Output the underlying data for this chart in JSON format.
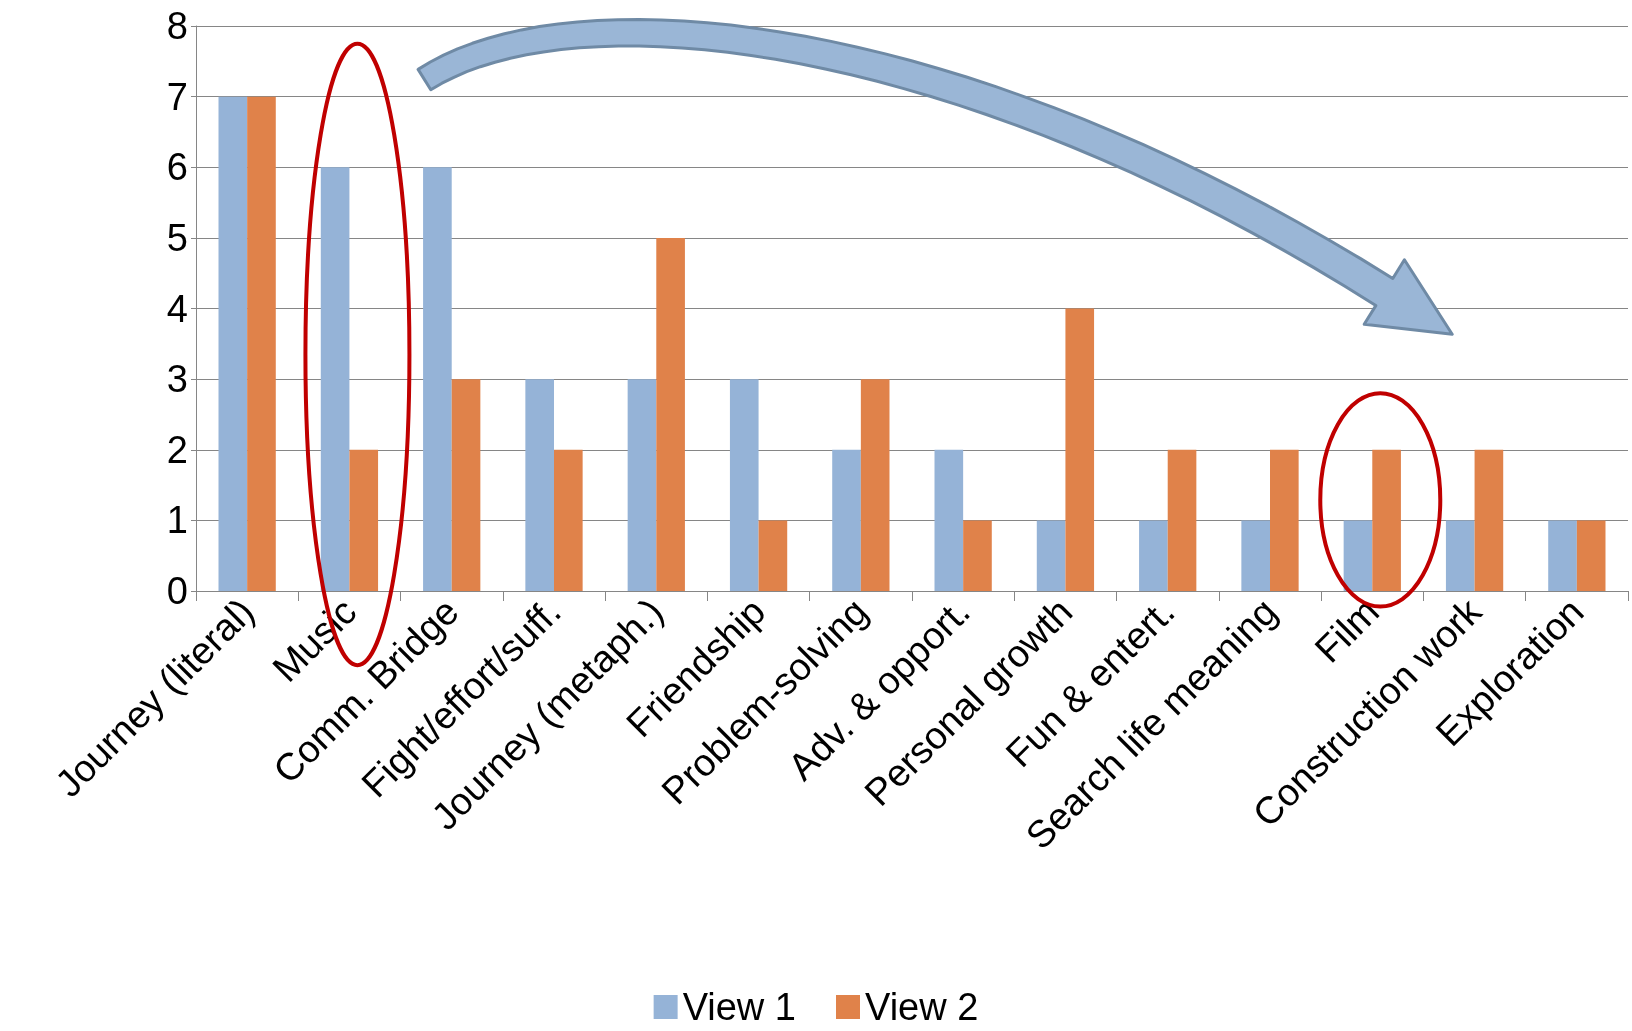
{
  "chart_data": {
    "type": "bar",
    "categories": [
      "Journey (literal)",
      "Music",
      "Comm. Bridge",
      "Fight/effort/suff.",
      "Journey (metaph.)",
      "Friendship",
      "Problem-solving",
      "Adv. & opport.",
      "Personal growth",
      "Fun & entert.",
      "Search life meaning",
      "Film",
      "Construction work",
      "Exploration"
    ],
    "series": [
      {
        "name": "View 1",
        "color": "#95b3d7",
        "values": [
          7,
          6,
          6,
          3,
          3,
          3,
          2,
          2,
          1,
          1,
          1,
          1,
          1,
          1
        ]
      },
      {
        "name": "View 2",
        "color": "#e0824a",
        "values": [
          7,
          2,
          3,
          2,
          5,
          1,
          3,
          1,
          4,
          2,
          2,
          2,
          2,
          1
        ]
      }
    ],
    "ylim": [
      0,
      8
    ],
    "yticks": [
      0,
      1,
      2,
      3,
      4,
      5,
      6,
      7,
      8
    ],
    "grid": "y",
    "legend": "bottom"
  }
}
